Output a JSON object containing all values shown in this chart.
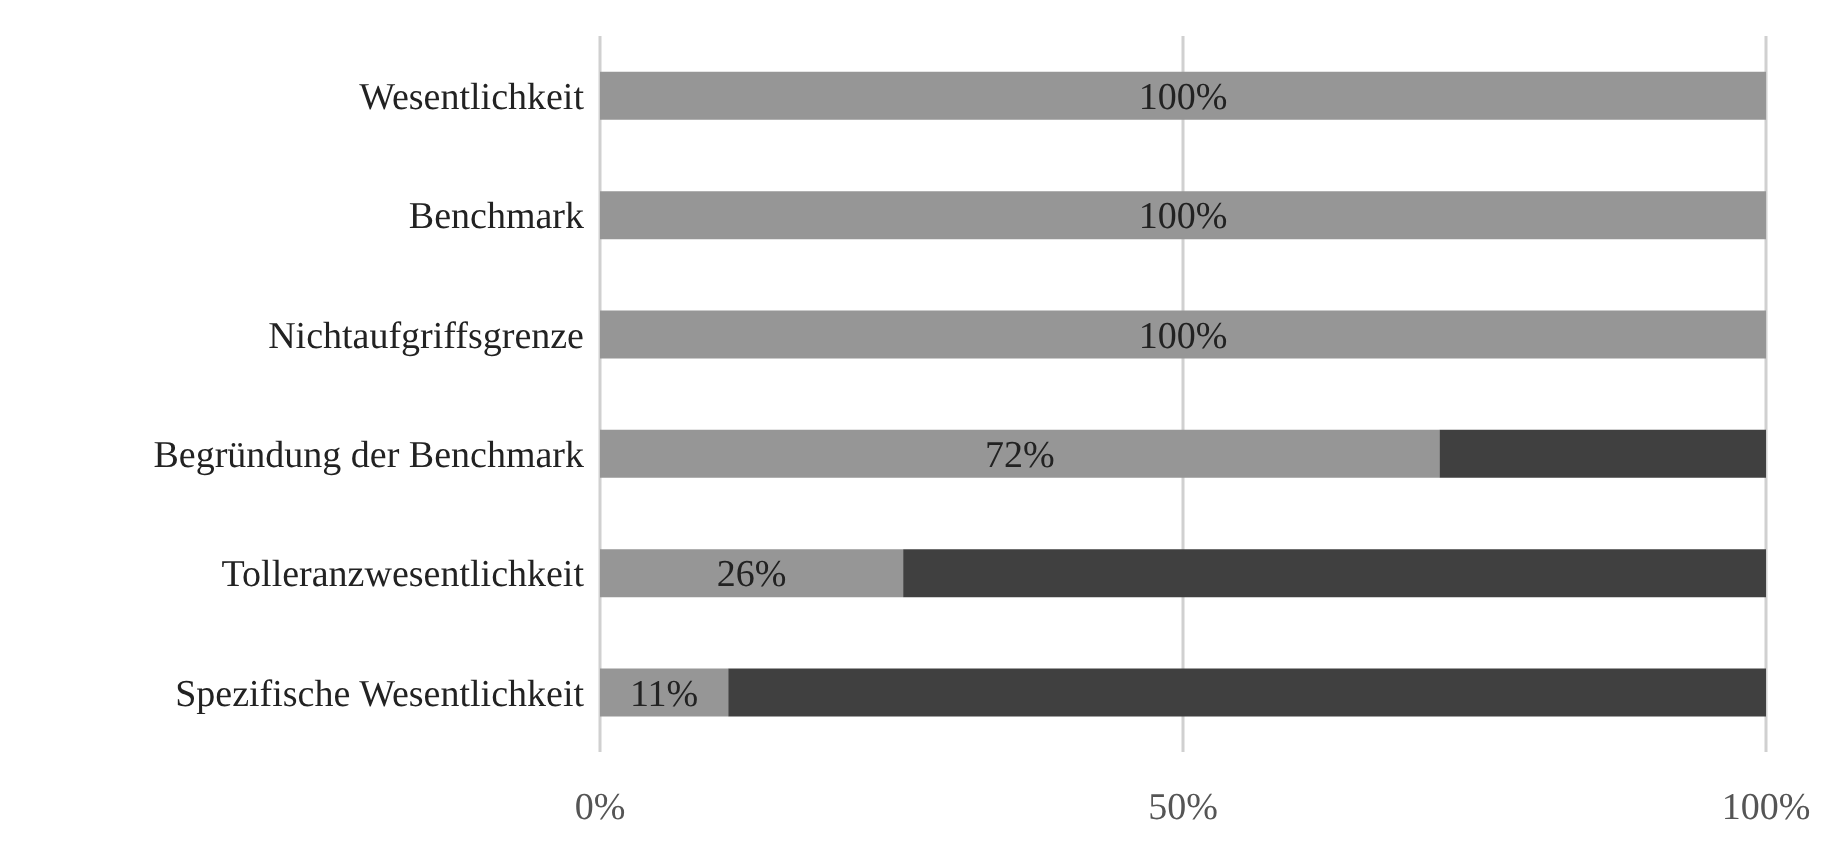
{
  "chart_data": {
    "type": "bar",
    "orientation": "horizontal",
    "stacked": true,
    "categories": [
      "Wesentlichkeit",
      "Benchmark",
      "Nichtaufgriffsgrenze",
      "Begründung der Benchmark",
      "Tolleranzwesentlichkeit",
      "Spezifische Wesentlichkeit"
    ],
    "series": [
      {
        "color": "#969696",
        "values": [
          100,
          100,
          100,
          72,
          26,
          11
        ],
        "value_labels": [
          "100%",
          "100%",
          "100%",
          "72%",
          "26%",
          "11%"
        ]
      },
      {
        "color": "#404040",
        "values": [
          0,
          0,
          0,
          28,
          74,
          89
        ]
      }
    ],
    "xlim": [
      0,
      100
    ],
    "xticks": [
      {
        "value": 0,
        "label": "0%"
      },
      {
        "value": 50,
        "label": "50%"
      },
      {
        "value": 100,
        "label": "100%"
      }
    ],
    "grid": "x",
    "legend": false
  }
}
